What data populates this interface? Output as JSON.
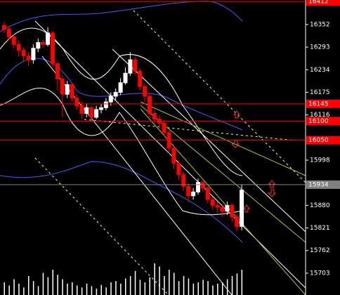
{
  "chart_data": {
    "type": "candlestick",
    "open": [
      16350,
      16340,
      16320,
      16300,
      16285,
      16270,
      16260,
      16290,
      16305,
      16300,
      16330,
      16250,
      16210,
      16170,
      16195,
      16160,
      16140,
      16120,
      16135,
      16110,
      16130,
      16135,
      16150,
      16165,
      16175,
      16200,
      16225,
      16260,
      16230,
      16190,
      16165,
      16120,
      16105,
      16095,
      16070,
      16030,
      15990,
      15960,
      15930,
      15905,
      15915,
      15940,
      15925,
      15895,
      15880,
      15875,
      15865,
      15880,
      15850,
      15825
    ],
    "high": [
      16360,
      16348,
      16328,
      16310,
      16292,
      16280,
      16300,
      16315,
      16312,
      16345,
      16335,
      16258,
      16220,
      16205,
      16200,
      16170,
      16150,
      16145,
      16140,
      16140,
      16145,
      16160,
      16175,
      16185,
      16212,
      16240,
      16280,
      16268,
      16238,
      16198,
      16172,
      16130,
      16115,
      16102,
      16078,
      16040,
      15998,
      15968,
      15938,
      15925,
      15950,
      15948,
      15932,
      15902,
      15890,
      15882,
      15890,
      15886,
      15858,
      15935
    ],
    "low": [
      16330,
      16310,
      16290,
      16270,
      16255,
      16245,
      16250,
      16280,
      16290,
      16295,
      16240,
      16180,
      16110,
      16160,
      16150,
      16130,
      16105,
      16110,
      16100,
      16105,
      16120,
      16128,
      16140,
      16155,
      16168,
      16195,
      16218,
      16220,
      16180,
      16150,
      16110,
      16090,
      16080,
      16060,
      16015,
      15975,
      15945,
      15918,
      15890,
      15895,
      15908,
      15915,
      15885,
      15868,
      15860,
      15850,
      15855,
      15835,
      15812,
      15815
    ],
    "close": [
      16340,
      16320,
      16300,
      16285,
      16270,
      16260,
      16290,
      16305,
      16300,
      16330,
      16250,
      16210,
      16170,
      16195,
      16160,
      16140,
      16120,
      16135,
      16110,
      16130,
      16135,
      16150,
      16165,
      16175,
      16200,
      16225,
      16260,
      16230,
      16190,
      16165,
      16120,
      16105,
      16095,
      16070,
      16030,
      15990,
      15960,
      15930,
      15905,
      15915,
      15940,
      15925,
      15895,
      15880,
      15875,
      15865,
      15880,
      15850,
      15825,
      15920
    ],
    "volume": [
      20,
      15,
      25,
      18,
      12,
      30,
      22,
      14,
      35,
      28,
      40,
      32,
      25,
      18,
      20,
      15,
      12,
      18,
      14,
      10,
      16,
      12,
      20,
      22,
      18,
      26,
      30,
      38,
      24,
      20,
      28,
      50,
      45,
      30,
      40,
      35,
      22,
      30,
      26,
      18,
      20,
      24,
      22,
      15,
      18,
      20,
      25,
      30,
      34,
      40
    ],
    "up_color": "#ffffff",
    "down_color": "#ff0000",
    "ylim": [
      15646,
      16416
    ],
    "yticks": [
      16352,
      16293,
      16234,
      16175,
      16116,
      15998,
      15880,
      15821,
      15762,
      15703
    ],
    "levels": [
      {
        "value": 16412,
        "color": "#ff0000"
      },
      {
        "value": 16145,
        "color": "#ff0000"
      },
      {
        "value": 16100,
        "color": "#ff0000"
      },
      {
        "value": 16050,
        "color": "#ff0000"
      },
      {
        "value": 15934,
        "color": "#808080"
      }
    ]
  }
}
